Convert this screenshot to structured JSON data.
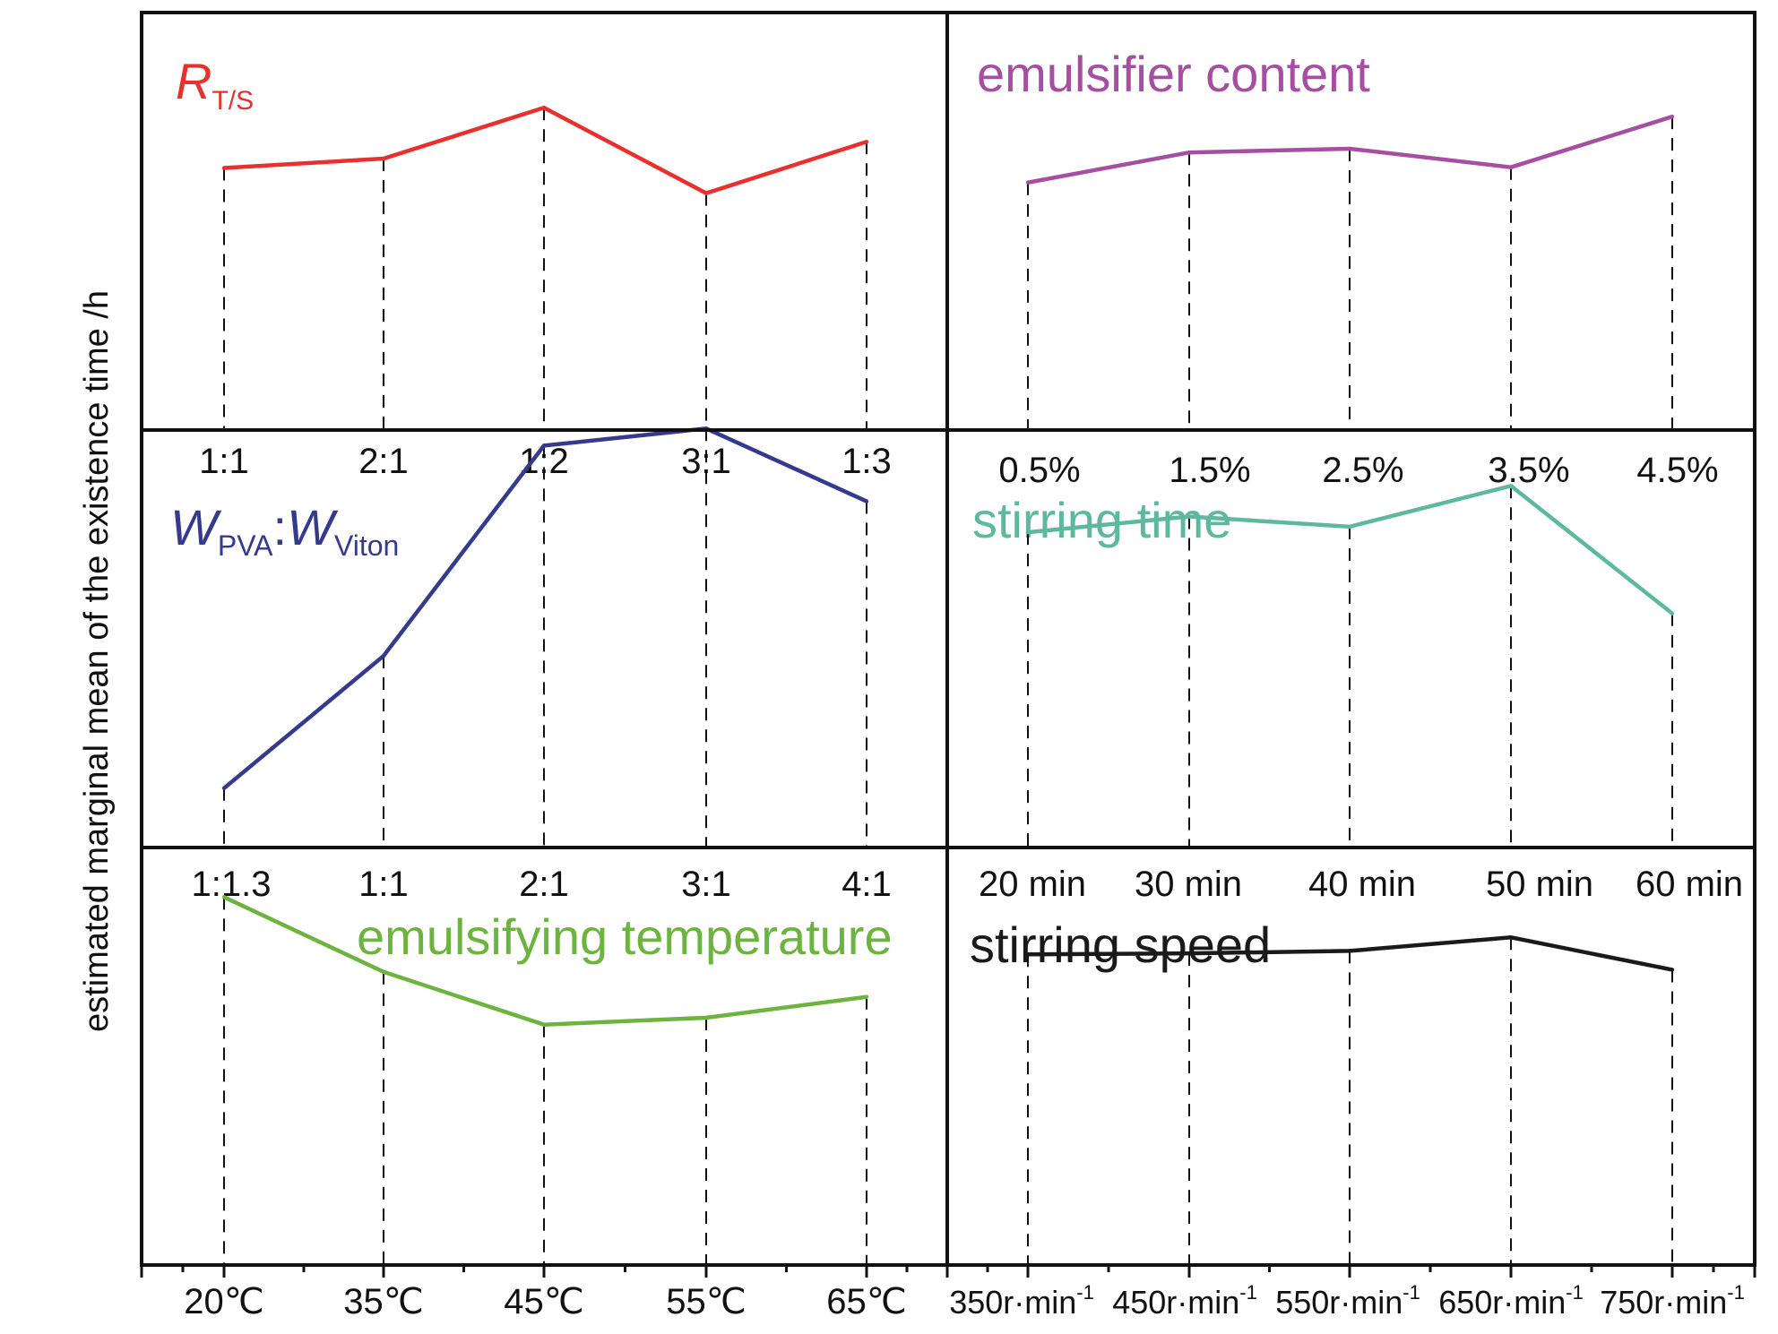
{
  "ylabel": "estimated marginal mean of the existence time /h",
  "chart_data": [
    {
      "type": "line",
      "title": {
        "main": "R",
        "sub": "T/S"
      },
      "categories": [
        "1:1",
        "2:1",
        "1:2",
        "3:1",
        "1:3"
      ],
      "values": [
        0.565,
        0.602,
        0.802,
        0.466,
        0.668
      ],
      "color": "#e8312f"
    },
    {
      "type": "line",
      "title": {
        "main": "emulsifier content"
      },
      "categories": [
        "0.5%",
        "1.5%",
        "2.5%",
        "3.5%",
        "4.5%"
      ],
      "values": [
        0.508,
        0.626,
        0.641,
        0.568,
        0.767
      ],
      "color": "#a64ea1"
    },
    {
      "type": "line",
      "title": {
        "w1": "W",
        "s1": "PVA",
        "colon": ":",
        "w2": "W",
        "s2": "Viton"
      },
      "categories": [
        "1:1.3",
        "1:1",
        "2:1",
        "3:1",
        "4:1"
      ],
      "values": [
        0.105,
        0.414,
        0.905,
        0.945,
        0.775
      ],
      "color": "#353a8c"
    },
    {
      "type": "line",
      "title": {
        "main": "stirring time"
      },
      "categories": [
        "20 min",
        "30 min",
        "40 min",
        "50 min",
        "60 min"
      ],
      "values": [
        0.633,
        0.667,
        0.645,
        0.733,
        0.458
      ],
      "color": "#5db89e"
    },
    {
      "type": "line",
      "title": {
        "main": "emulsifying temperature"
      },
      "categories": [
        "20℃",
        "35℃",
        "45℃",
        "55℃",
        "65℃"
      ],
      "values": [
        0.848,
        0.654,
        0.517,
        0.535,
        0.589
      ],
      "color": "#6db33f"
    },
    {
      "type": "line",
      "title": {
        "main": "stirring speed"
      },
      "categories": [
        "350r·min",
        "450r·min",
        "550r·min",
        "650r·min",
        "750r·min"
      ],
      "category_sup": "-1",
      "values": [
        0.62,
        0.622,
        0.627,
        0.655,
        0.588
      ],
      "color": "#1a1a1a"
    }
  ]
}
